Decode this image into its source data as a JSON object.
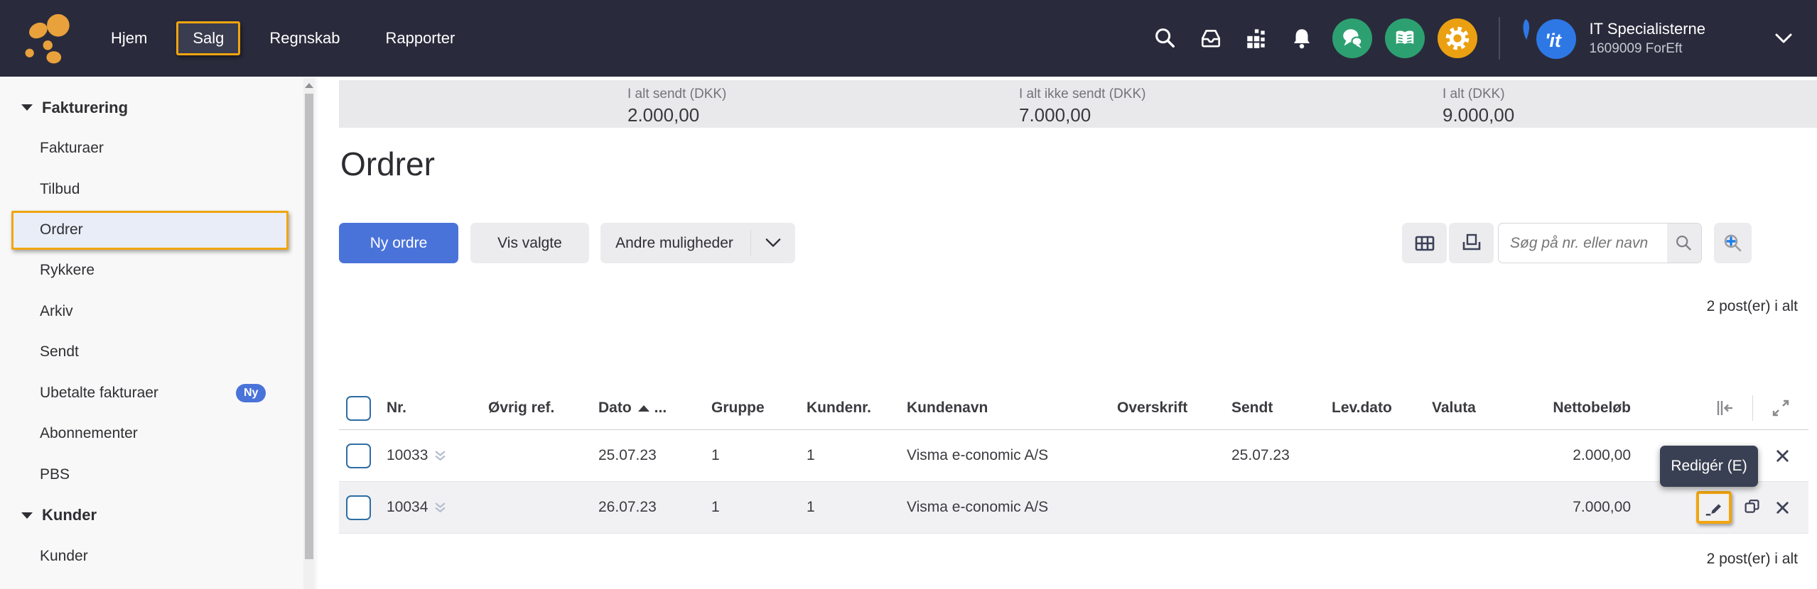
{
  "colors": {
    "navbar_bg": "#292b3c",
    "focus_yellow": "#f0a50f",
    "primary_blue": "#4a73d9",
    "badge_blue": "#4a73d9",
    "circle_green": "#2da071",
    "circle_orange": "#eba011",
    "logo_orange": "#e9a13b",
    "avatar_blue": "#2e78e6",
    "summary_bg": "#e9e9eb",
    "hover_row_bg": "#f1f1f3",
    "tooltip_bg": "#3a4053"
  },
  "icons": {
    "search": "magnifier",
    "inbox": "tray",
    "apps": "square-grid",
    "notifications": "bell",
    "chat": "speech-bubbles",
    "help": "open-book",
    "settings": "gear",
    "chevron_down": "v",
    "sort_ascending": "▲",
    "row_expand": "double-chevron-down",
    "edit": "pencil",
    "copy": "duplicate-squares",
    "delete": "✕",
    "collapse_columns": "||←",
    "fullscreen": "diagonal-arrows",
    "table_view": "grid",
    "print": "printer",
    "advanced_search": "magnifier-plus"
  },
  "navbar": {
    "menu": [
      {
        "id": "hjem",
        "label": "Hjem",
        "selected": false
      },
      {
        "id": "salg",
        "label": "Salg",
        "selected": true
      },
      {
        "id": "regnskab",
        "label": "Regnskab",
        "selected": false
      },
      {
        "id": "rapporter",
        "label": "Rapporter",
        "selected": false
      }
    ],
    "account": {
      "name": "IT Specialisterne",
      "agreement": "1609009 ForEft",
      "avatar_text": "'it"
    }
  },
  "sidebar": {
    "items": [
      {
        "type": "section",
        "id": "fakturering",
        "label": "Fakturering"
      },
      {
        "type": "item",
        "id": "fakturaer",
        "label": "Fakturaer"
      },
      {
        "type": "item",
        "id": "tilbud",
        "label": "Tilbud"
      },
      {
        "type": "item",
        "id": "ordrer",
        "label": "Ordrer",
        "selected": true
      },
      {
        "type": "item",
        "id": "rykkere",
        "label": "Rykkere"
      },
      {
        "type": "item",
        "id": "arkiv",
        "label": "Arkiv"
      },
      {
        "type": "item",
        "id": "sendt",
        "label": "Sendt"
      },
      {
        "type": "item",
        "id": "ubetalte-fakturaer",
        "label": "Ubetalte fakturaer",
        "badge": "Ny"
      },
      {
        "type": "item",
        "id": "abonnementer",
        "label": "Abonnementer"
      },
      {
        "type": "item",
        "id": "pbs",
        "label": "PBS"
      },
      {
        "type": "section",
        "id": "kunder",
        "label": "Kunder"
      },
      {
        "type": "item",
        "id": "kunder",
        "label": "Kunder"
      }
    ]
  },
  "summary": {
    "stats": [
      {
        "label": "I alt sendt (DKK)",
        "value": "2.000,00"
      },
      {
        "label": "I alt ikke sendt (DKK)",
        "value": "7.000,00"
      },
      {
        "label": "I alt (DKK)",
        "value": "9.000,00"
      }
    ]
  },
  "page": {
    "title": "Ordrer"
  },
  "toolbar": {
    "new_order": "Ny ordre",
    "show_selected": "Vis valgte",
    "more_options": "Andre muligheder",
    "search_placeholder": "Søg på nr. eller navn"
  },
  "counts": {
    "total": "2 post(er) i alt"
  },
  "table": {
    "columns": [
      {
        "key": "nr",
        "label": "Nr."
      },
      {
        "key": "ovrig_ref",
        "label": "Øvrig ref."
      },
      {
        "key": "dato",
        "label": "Dato",
        "sort": "asc",
        "suffix": "..."
      },
      {
        "key": "gruppe",
        "label": "Gruppe"
      },
      {
        "key": "kundenr",
        "label": "Kundenr."
      },
      {
        "key": "kundenavn",
        "label": "Kundenavn"
      },
      {
        "key": "overskrift",
        "label": "Overskrift"
      },
      {
        "key": "sendt",
        "label": "Sendt"
      },
      {
        "key": "levdato",
        "label": "Lev.dato"
      },
      {
        "key": "valuta",
        "label": "Valuta"
      },
      {
        "key": "nettobelob",
        "label": "Nettobeløb",
        "align": "right"
      }
    ],
    "rows": [
      {
        "nr": "10033",
        "ovrig_ref": "",
        "dato": "25.07.23",
        "gruppe": "1",
        "kundenr": "1",
        "kundenavn": "Visma e-conomic A/S",
        "overskrift": "",
        "sendt": "25.07.23",
        "levdato": "",
        "valuta": "",
        "nettobelob": "2.000,00",
        "state": "normal",
        "actions": [
          "delete"
        ]
      },
      {
        "nr": "10034",
        "ovrig_ref": "",
        "dato": "26.07.23",
        "gruppe": "1",
        "kundenr": "1",
        "kundenavn": "Visma e-conomic A/S",
        "overskrift": "",
        "sendt": "",
        "levdato": "",
        "valuta": "",
        "nettobelob": "7.000,00",
        "state": "hover",
        "actions": [
          "edit",
          "copy",
          "delete"
        ],
        "focused_action": "edit"
      }
    ]
  },
  "tooltip": {
    "label": "Redigér (E)"
  }
}
